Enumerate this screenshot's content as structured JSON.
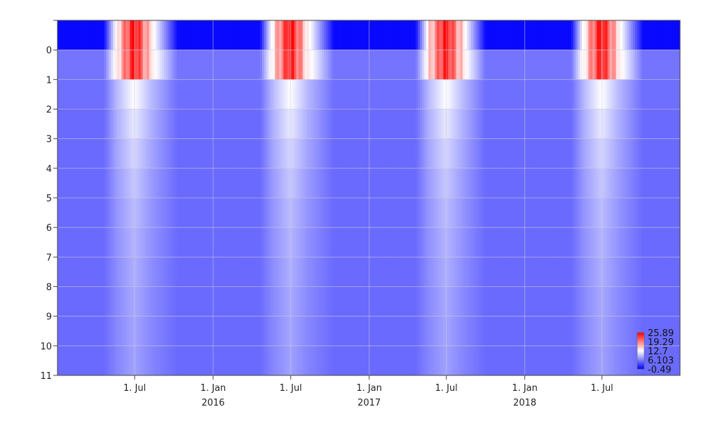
{
  "chart_data": {
    "type": "heatmap",
    "title": "",
    "xlabel": "",
    "ylabel": "",
    "x_range": [
      "2015-01-01",
      "2018-12-31"
    ],
    "y_range": [
      -1,
      11
    ],
    "y_reversed": true,
    "grid": true,
    "y_ticks": [
      "0",
      "1",
      "2",
      "3",
      "4",
      "5",
      "6",
      "7",
      "8",
      "9",
      "10",
      "11"
    ],
    "y_tick_values": [
      0,
      1,
      2,
      3,
      4,
      5,
      6,
      7,
      8,
      9,
      10,
      11
    ],
    "x_ticks": [
      {
        "date": "2015-07-01",
        "label": "1. Jul",
        "year": ""
      },
      {
        "date": "2016-01-01",
        "label": "1. Jan",
        "year": "2016"
      },
      {
        "date": "2016-07-01",
        "label": "1. Jul",
        "year": ""
      },
      {
        "date": "2017-01-01",
        "label": "1. Jan",
        "year": "2017"
      },
      {
        "date": "2017-07-01",
        "label": "1. Jul",
        "year": ""
      },
      {
        "date": "2018-01-01",
        "label": "1. Jan",
        "year": "2018"
      },
      {
        "date": "2018-07-01",
        "label": "1. Jul",
        "year": ""
      }
    ],
    "colorscale": {
      "min": -0.49,
      "max": 25.89,
      "colors": [
        "#0000ff",
        "#ffffff",
        "#ff0000"
      ],
      "tick_labels": [
        "25.89",
        "19.29",
        "12.7",
        "6.103",
        "-0.49"
      ],
      "legend_position": "bottom-right"
    },
    "depth_rows": [
      {
        "depth_top": -1,
        "depth_bottom": 0,
        "winter": 0.0,
        "summer_edge": 14,
        "summer_peak": 25.5
      },
      {
        "depth_top": 0,
        "depth_bottom": 1,
        "winter": 5.5,
        "summer_edge": 14,
        "summer_peak": 24.5
      },
      {
        "depth_top": 1,
        "depth_bottom": 2,
        "winter": 5.2,
        "summer_edge": 9,
        "summer_peak": 12.7
      },
      {
        "depth_top": 2,
        "depth_bottom": 3,
        "winter": 5.0,
        "summer_edge": 8.5,
        "summer_peak": 11.5
      },
      {
        "depth_top": 3,
        "depth_bottom": 4,
        "winter": 5.0,
        "summer_edge": 8,
        "summer_peak": 10.5
      },
      {
        "depth_top": 4,
        "depth_bottom": 5,
        "winter": 5.0,
        "summer_edge": 7.5,
        "summer_peak": 9.8
      },
      {
        "depth_top": 5,
        "depth_bottom": 6,
        "winter": 5.0,
        "summer_edge": 7.2,
        "summer_peak": 9.2
      },
      {
        "depth_top": 6,
        "depth_bottom": 7,
        "winter": 5.0,
        "summer_edge": 7.0,
        "summer_peak": 8.8
      },
      {
        "depth_top": 7,
        "depth_bottom": 8,
        "winter": 5.0,
        "summer_edge": 6.8,
        "summer_peak": 8.5
      },
      {
        "depth_top": 8,
        "depth_bottom": 9,
        "winter": 5.0,
        "summer_edge": 6.6,
        "summer_peak": 8.2
      },
      {
        "depth_top": 9,
        "depth_bottom": 10,
        "winter": 5.0,
        "summer_edge": 6.5,
        "summer_peak": 8.0
      },
      {
        "depth_top": 10,
        "depth_bottom": 11,
        "winter": 5.0,
        "summer_edge": 6.4,
        "summer_peak": 7.8
      }
    ],
    "summer_periods": [
      {
        "start": "2015-04-20",
        "peak_start": "2015-05-20",
        "peak_end": "2015-08-10",
        "end": "2015-10-10"
      },
      {
        "start": "2016-04-20",
        "peak_start": "2016-05-20",
        "peak_end": "2016-08-10",
        "end": "2016-10-10"
      },
      {
        "start": "2017-04-20",
        "peak_start": "2017-05-20",
        "peak_end": "2017-08-10",
        "end": "2017-10-01"
      },
      {
        "start": "2018-04-20",
        "peak_start": "2018-05-20",
        "peak_end": "2018-08-10",
        "end": "2018-10-05"
      }
    ]
  }
}
